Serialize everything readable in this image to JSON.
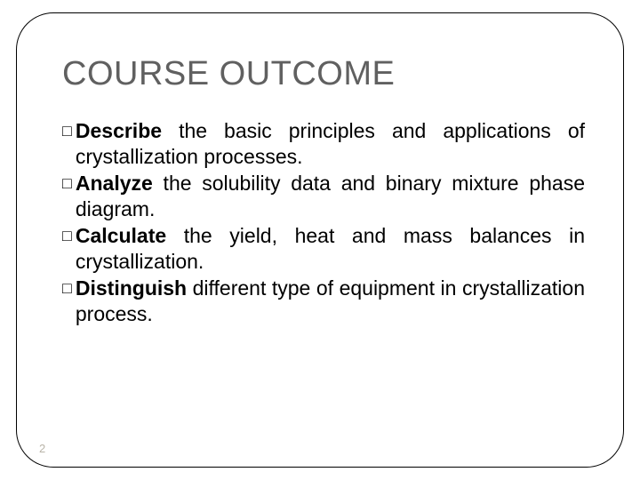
{
  "slide": {
    "title": "COURSE OUTCOME",
    "title_color": "#606060",
    "title_fontsize": 38,
    "body_fontsize": 23,
    "body_color": "#000000",
    "frame_border_color": "#000000",
    "frame_border_radius": 42,
    "background_color": "#ffffff",
    "bullet_glyph": "□",
    "items": [
      {
        "bold": "Describe",
        "rest": " the basic principles and applications of crystallization processes."
      },
      {
        "bold": "Analyze",
        "rest": " the solubility data and binary mixture phase diagram."
      },
      {
        "bold": "Calculate",
        "rest": " the yield, heat and mass balances in crystallization."
      },
      {
        "bold": "Distinguish",
        "rest": " different type of equipment in crystallization process."
      }
    ],
    "page_number": "2"
  }
}
